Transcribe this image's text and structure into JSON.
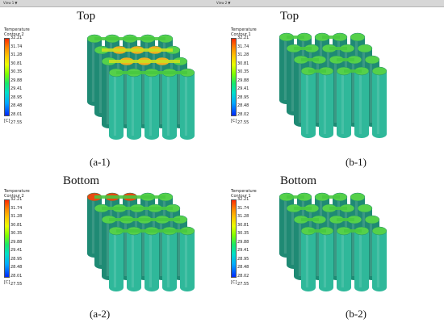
{
  "window_tabs": [
    {
      "label": "View 1"
    },
    {
      "label": "View 2"
    }
  ],
  "panels": [
    {
      "title": "Top",
      "caption": "(a-1)",
      "legend": {
        "name": "Temperature",
        "sub": "Contour 2",
        "values": [
          "32.21",
          "31.74",
          "31.28",
          "30.81",
          "30.35",
          "29.88",
          "29.41",
          "28.95",
          "28.48",
          "28.01",
          "27.55"
        ],
        "unit": "[C]"
      },
      "hot_color": "#f0b020"
    },
    {
      "title": "Top",
      "caption": "(b-1)",
      "legend": {
        "name": "Temperature",
        "sub": "Contour 1",
        "values": [
          "32.21",
          "31.74",
          "31.28",
          "30.81",
          "30.35",
          "29.88",
          "29.41",
          "28.95",
          "28.48",
          "28.02",
          "27.55"
        ],
        "unit": "[C]"
      },
      "hot_color": "#3ec84a"
    },
    {
      "title": "Bottom",
      "caption": "(a-2)",
      "legend": {
        "name": "Temperature",
        "sub": "Contour 2",
        "values": [
          "32.21",
          "31.74",
          "31.28",
          "30.81",
          "30.35",
          "29.88",
          "29.41",
          "28.95",
          "28.48",
          "28.01",
          "27.55"
        ],
        "unit": "[C]"
      },
      "hot_color": "#e84a10"
    },
    {
      "title": "Bottom",
      "caption": "(b-2)",
      "legend": {
        "name": "Temperature",
        "sub": "Contour 1",
        "values": [
          "32.21",
          "31.74",
          "31.28",
          "30.81",
          "30.35",
          "29.88",
          "29.41",
          "28.95",
          "28.48",
          "28.02",
          "27.55"
        ],
        "unit": "[C]"
      },
      "hot_color": "#3ec84a"
    }
  ],
  "colors": {
    "cell_body": "#2fb89a",
    "cell_dark": "#1f8a74",
    "cell_top": "#55d04a",
    "cell_lit": "#7de060",
    "connector": "#48c840"
  }
}
